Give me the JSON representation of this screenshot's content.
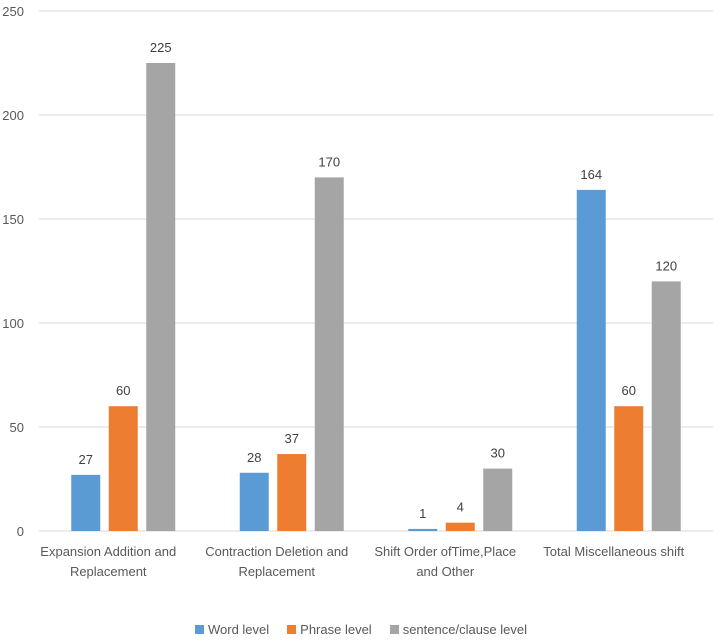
{
  "chart_data": {
    "type": "bar",
    "title": "",
    "xlabel": "",
    "ylabel": "",
    "ylim": [
      0,
      250
    ],
    "yticks": [
      0,
      50,
      100,
      150,
      200,
      250
    ],
    "grid": true,
    "legend_placement": "bottom",
    "categories": [
      [
        "Expansion Addition and",
        "Replacement"
      ],
      [
        "Contraction Deletion and",
        "Replacement"
      ],
      [
        "Shift Order ofTime,Place",
        "and Other"
      ],
      [
        "Total Miscellaneous shift"
      ]
    ],
    "series": [
      {
        "name": "Word level",
        "color": "#5B9BD5",
        "values": [
          27,
          28,
          1,
          164
        ]
      },
      {
        "name": "Phrase level",
        "color": "#ED7D31",
        "values": [
          60,
          37,
          4,
          60
        ]
      },
      {
        "name": "sentence/clause level",
        "color": "#A5A5A5",
        "values": [
          225,
          170,
          30,
          120
        ]
      }
    ]
  }
}
